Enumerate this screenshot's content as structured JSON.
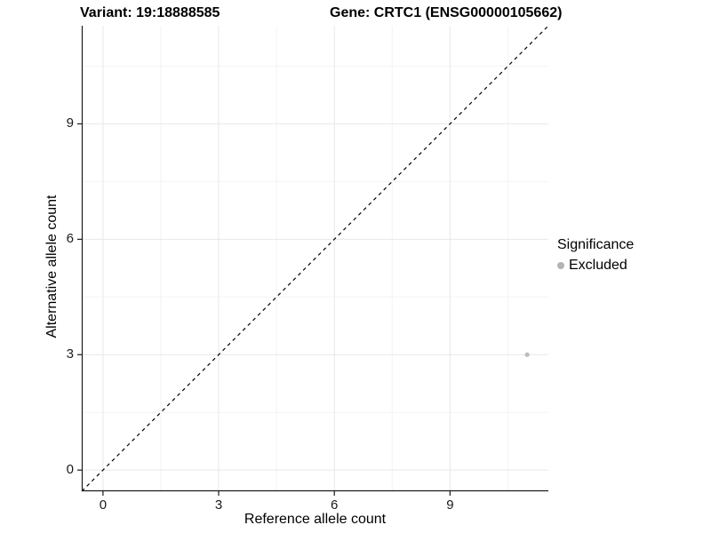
{
  "figure": {
    "background": "#ffffff",
    "text_color": "#000000",
    "axis_color": "#1a1a1a"
  },
  "chart_data": {
    "type": "scatter",
    "titles": {
      "left": "Variant: 19:18888585",
      "right": "Gene: CRTC1 (ENSG00000105662)"
    },
    "xlabel": "Reference allele count",
    "ylabel": "Alternative allele count",
    "xlim": [
      -0.55,
      11.55
    ],
    "ylim": [
      -0.55,
      11.55
    ],
    "x_ticks": [
      0,
      3,
      6,
      9
    ],
    "y_ticks": [
      0,
      3,
      6,
      9
    ],
    "x_minor_gridlines": [
      1.5,
      4.5,
      7.5,
      10.5
    ],
    "y_minor_gridlines": [
      1.5,
      4.5,
      7.5,
      10.5
    ],
    "grid": {
      "major_color": "#e8e8e8",
      "minor_color": "#f3f3f3",
      "background": "#ffffff"
    },
    "identity_line": {
      "style": "dashed",
      "color": "#000000",
      "from": [
        -0.55,
        -0.55
      ],
      "to": [
        11.55,
        11.55
      ]
    },
    "series": [
      {
        "name": "Excluded",
        "color": "#bdbdbd",
        "points": [
          {
            "x": 11,
            "y": 3
          }
        ]
      }
    ],
    "legend": {
      "title": "Significance",
      "position": "right",
      "entries": [
        {
          "label": "Excluded",
          "color": "#b3b3b3"
        }
      ]
    }
  }
}
